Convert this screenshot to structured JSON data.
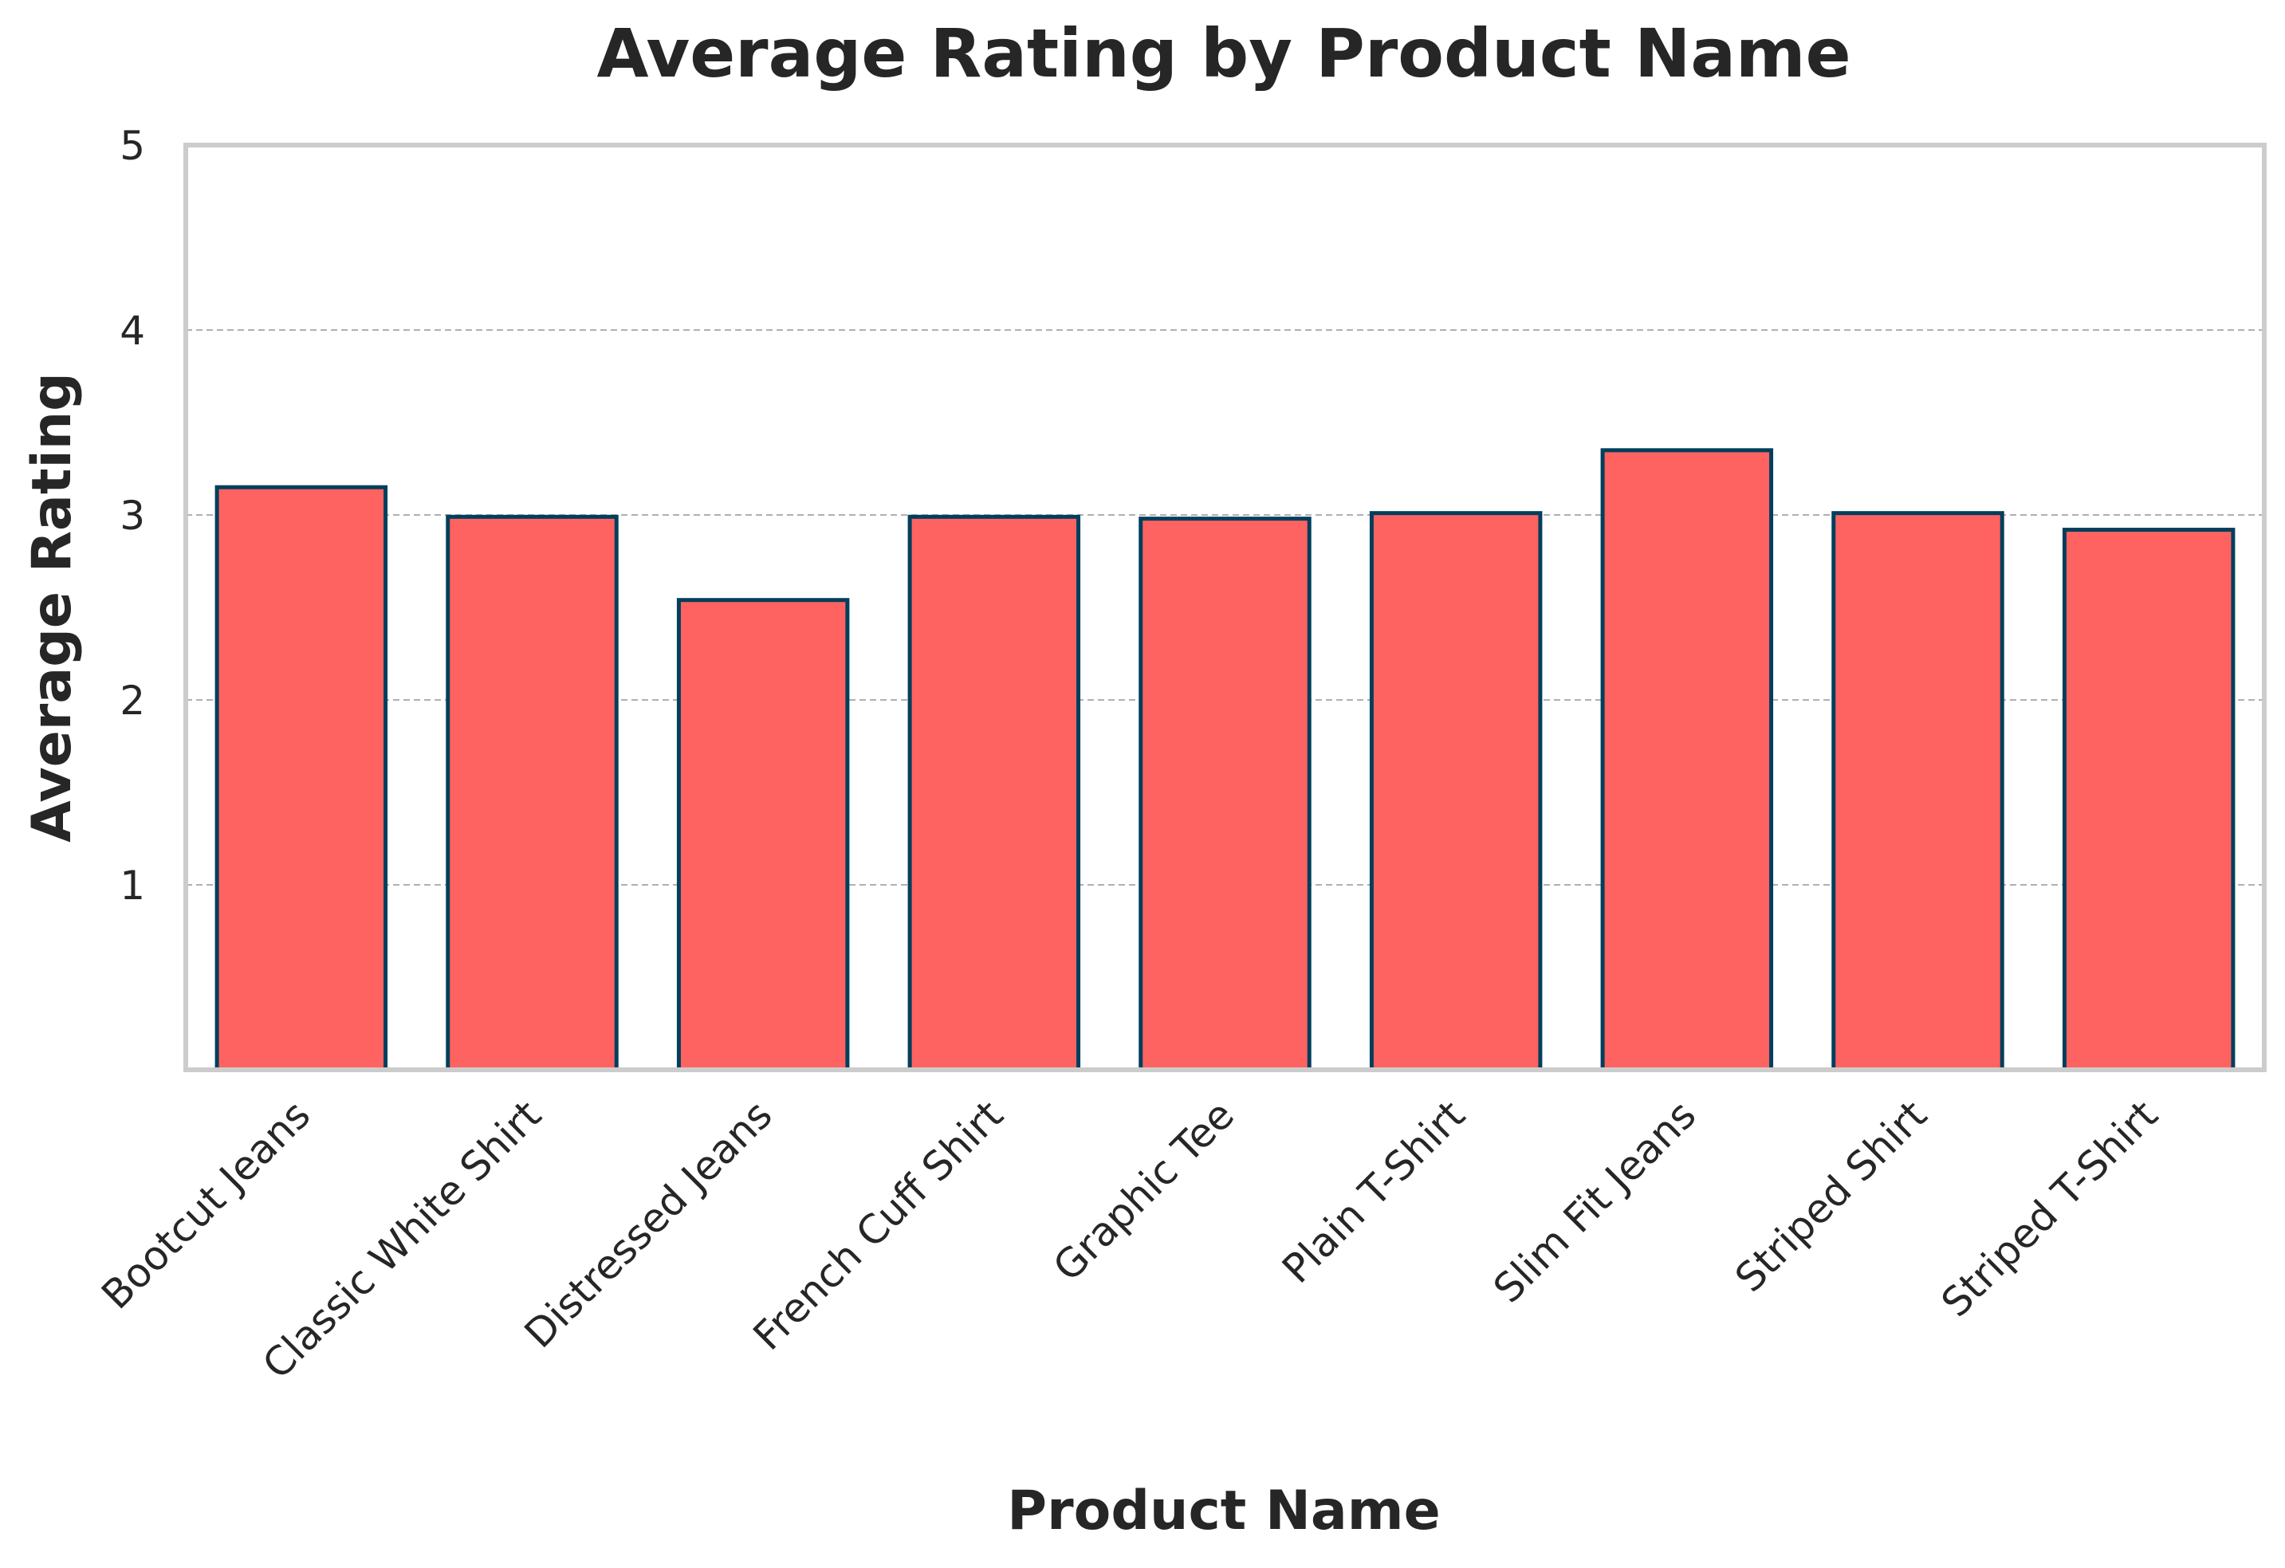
{
  "chart_data": {
    "type": "bar",
    "title": "Average Rating by Product Name",
    "xlabel": "Product Name",
    "ylabel": "Average Rating",
    "categories": [
      "Bootcut Jeans",
      "Classic White Shirt",
      "Distressed Jeans",
      "French Cuff Shirt",
      "Graphic Tee",
      "Plain T-Shirt",
      "Slim Fit Jeans",
      "Striped Shirt",
      "Striped T-Shirt"
    ],
    "values": [
      3.15,
      2.99,
      2.54,
      2.99,
      2.98,
      3.01,
      3.35,
      3.01,
      2.92
    ],
    "ylim": [
      0,
      5
    ],
    "yticks": [
      "1",
      "2",
      "3",
      "4",
      "5"
    ],
    "grid": "y-dashed",
    "legend": "none",
    "colors": {
      "bar_fill": "#ff6361",
      "bar_edge": "#003f5c",
      "grid": "#b0b0b0",
      "frame": "#cccccc",
      "text": "#262626"
    }
  }
}
